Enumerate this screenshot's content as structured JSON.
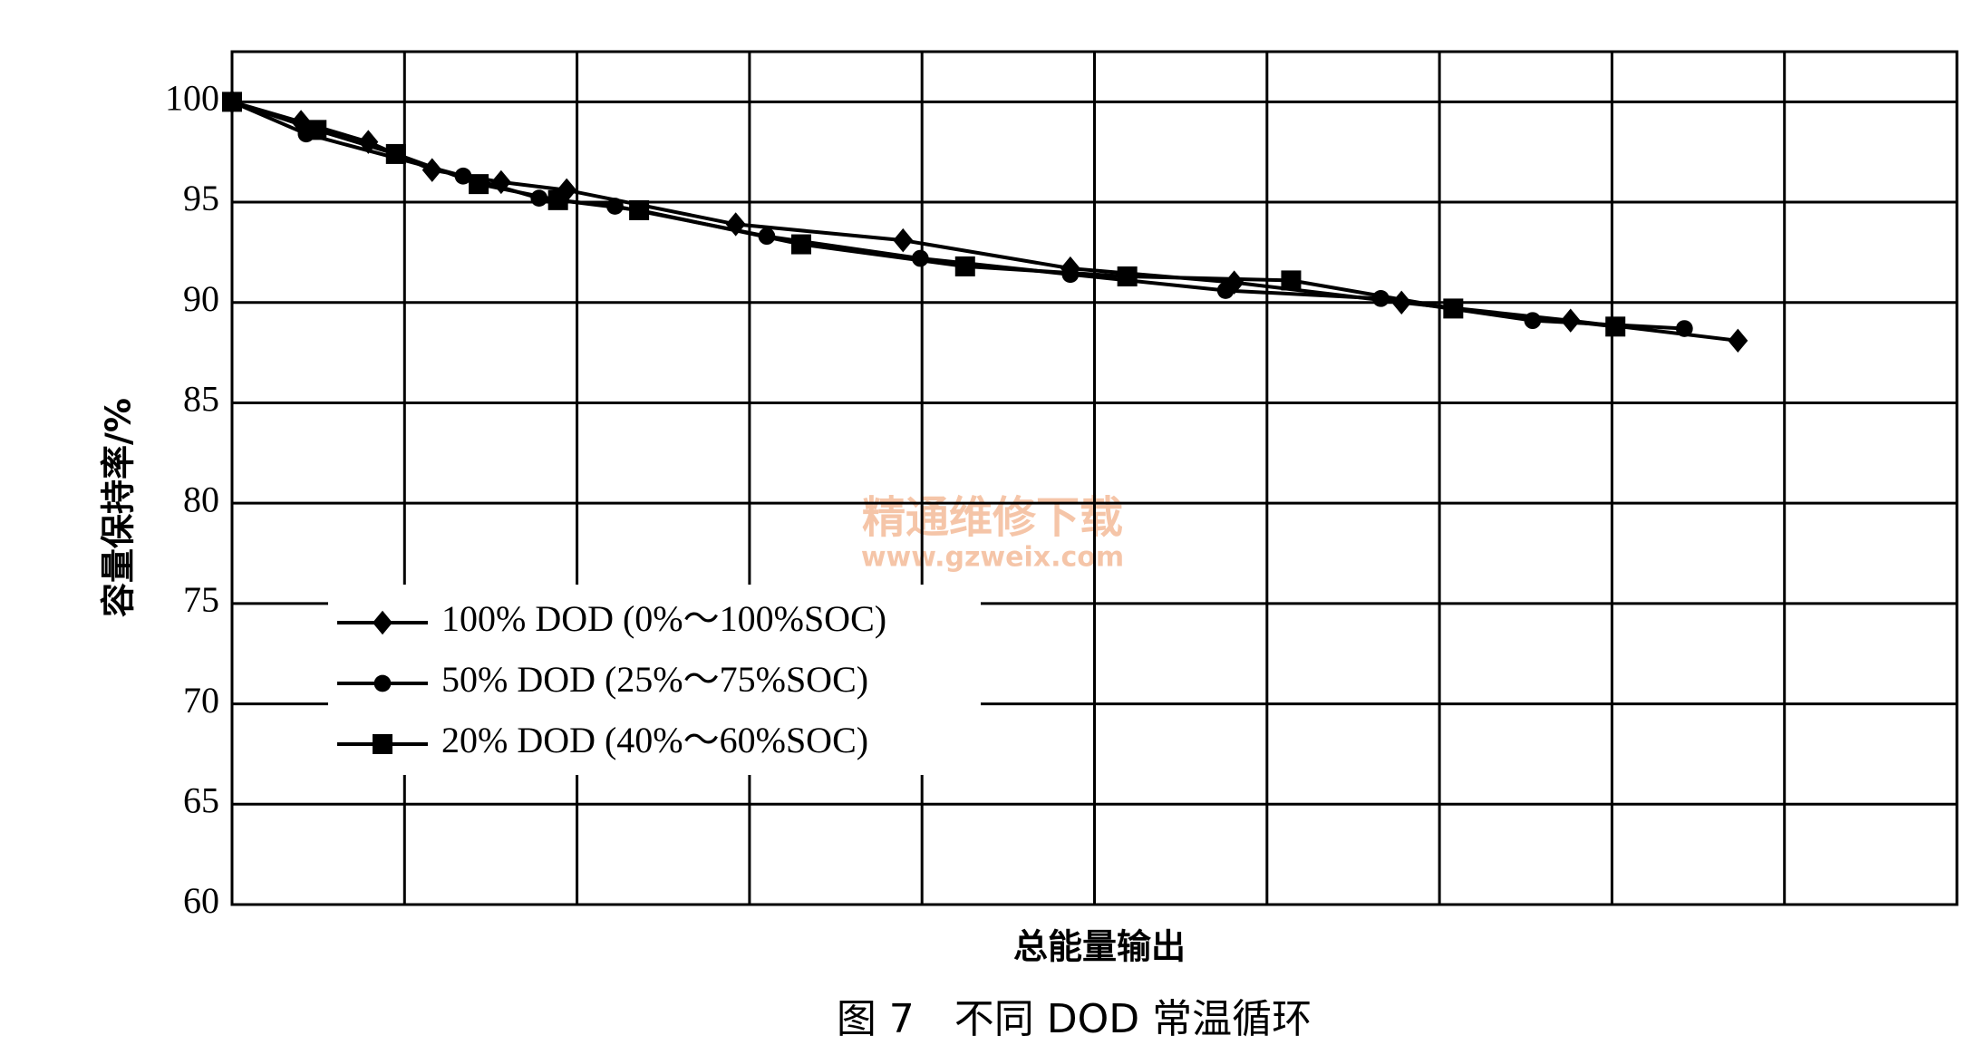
{
  "chart_data": {
    "type": "line",
    "x_label": "总能量输出",
    "y_label": "容量保持率/%",
    "caption": "图 7　不同 DOD 常温循环",
    "watermark": [
      "精通维修下载",
      "www.gzweix.com"
    ],
    "xlim": [
      0,
      10
    ],
    "ylim": [
      60,
      102.5
    ],
    "yticks": [
      60,
      65,
      70,
      75,
      80,
      85,
      90,
      95,
      100
    ],
    "grid": true,
    "legend": "left",
    "series": [
      {
        "name": "100% DOD (0%～100%SOC)",
        "marker": "diamond",
        "color": "#000000",
        "x": [
          0,
          0.4,
          0.79,
          1.16,
          1.56,
          1.94,
          2.92,
          3.89,
          4.86,
          5.81,
          6.78,
          7.76,
          8.73
        ],
        "values": [
          100,
          99.0,
          98.0,
          96.6,
          96.0,
          95.6,
          93.9,
          93.1,
          91.7,
          91.0,
          90.0,
          89.1,
          88.1
        ]
      },
      {
        "name": "50% DOD (25%～75%SOC)",
        "marker": "circle",
        "color": "#000000",
        "x": [
          0,
          0.43,
          1.34,
          1.78,
          2.22,
          3.1,
          3.99,
          4.86,
          5.76,
          6.66,
          7.54,
          8.42
        ],
        "values": [
          100,
          98.4,
          96.3,
          95.2,
          94.8,
          93.3,
          92.2,
          91.4,
          90.6,
          90.2,
          89.1,
          88.7
        ]
      },
      {
        "name": "20% DOD (40%～60%SOC)",
        "marker": "square",
        "color": "#000000",
        "x": [
          0,
          0.49,
          0.95,
          1.43,
          1.89,
          2.36,
          3.3,
          4.25,
          5.19,
          6.14,
          7.08,
          8.02
        ],
        "values": [
          100,
          98.6,
          97.4,
          95.9,
          95.1,
          94.6,
          92.9,
          91.8,
          91.3,
          91.1,
          89.7,
          88.8
        ]
      }
    ]
  }
}
